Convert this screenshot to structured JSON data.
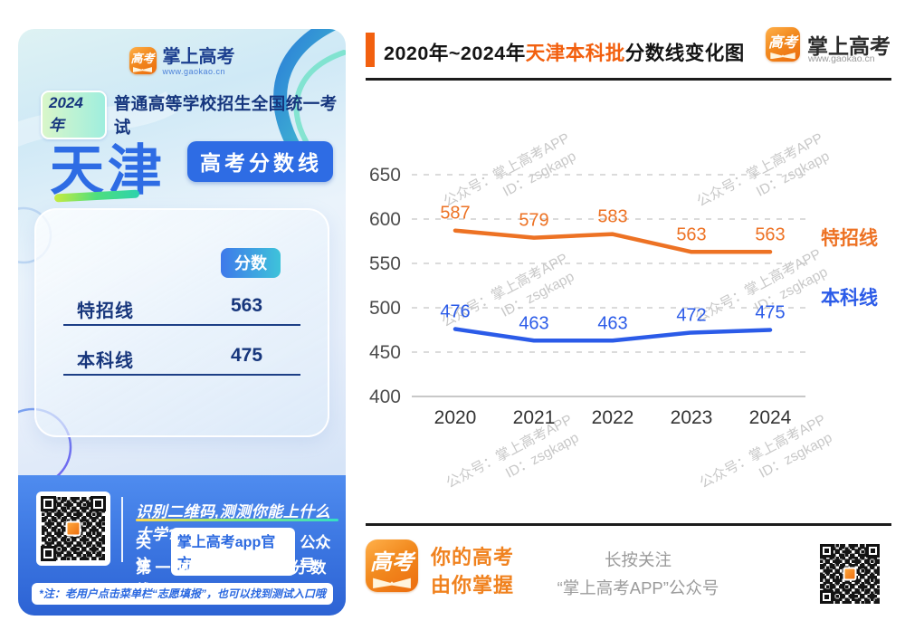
{
  "poster": {
    "brand": {
      "icon": "高考",
      "name": "掌上高考",
      "url": "www.gaokao.cn"
    },
    "year_badge": "2024年",
    "exam_title": "普通高等学校招生全国统一考试",
    "province": "天津",
    "score_line_badge": "高考分数线",
    "card": {
      "score_header": "分数",
      "rows": [
        {
          "label": "特招线",
          "value": "563"
        },
        {
          "label": "本科线",
          "value": "475"
        }
      ]
    },
    "footer": {
      "line1": "识别二维码,测测你能上什么大学?",
      "line2_prefix": "关注",
      "line2_badge": "掌上高考app官方",
      "line2_suffix": "公众号",
      "line3": "第一时间获取各省分数线",
      "note": "*注：老用户点击菜单栏“志愿填报”，也可以找到测试入口哦"
    }
  },
  "chart_panel": {
    "title": {
      "part1": "2020年~2024年",
      "highlight": "天津本科批",
      "part2": "分数线变化图"
    },
    "brand": {
      "icon": "高考",
      "name": "掌上高考",
      "url": "www.gaokao.cn"
    },
    "watermark": {
      "line1": "公众号：掌上高考APP",
      "line2": "ID：zsgkapp"
    },
    "footer": {
      "icon": "高考",
      "slogan_line1": "你的高考",
      "slogan_line2": "由你掌握",
      "follow_line1": "长按关注",
      "follow_line2": "“掌上高考APP”公众号"
    }
  },
  "chart_data": {
    "type": "line",
    "title": "2020年~2024年天津本科批分数线变化图",
    "categories": [
      "2020",
      "2021",
      "2022",
      "2023",
      "2024"
    ],
    "series": [
      {
        "name": "特招线",
        "values": [
          587,
          579,
          583,
          563,
          563
        ],
        "color": "#ED7224"
      },
      {
        "name": "本科线",
        "values": [
          476,
          463,
          463,
          472,
          475
        ],
        "color": "#2B5BE8"
      }
    ],
    "xlabel": "",
    "ylabel": "",
    "ylim": [
      400,
      650
    ],
    "ytick_step": 50,
    "grid": "horizontal-dashed",
    "legend_position": "right-of-line-ends"
  }
}
